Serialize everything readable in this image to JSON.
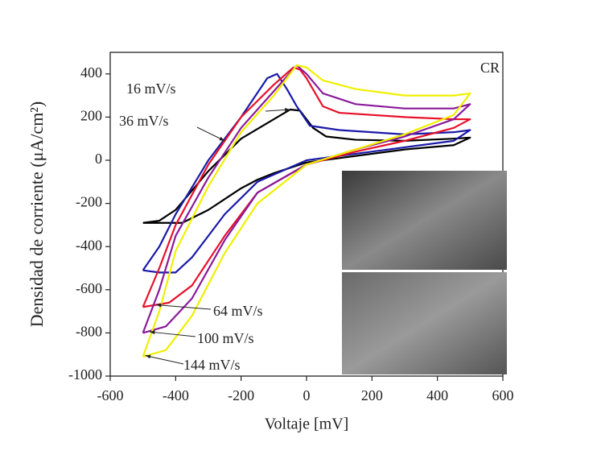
{
  "chart_data": {
    "type": "line",
    "xlabel": "Voltaje [mV]",
    "ylabel": "Densidad de corriente (μA/cm²)",
    "annotation": "CR",
    "xlim": [
      -600,
      600
    ],
    "xticks": [
      -600,
      -400,
      -200,
      0,
      200,
      400,
      600
    ],
    "ylim": [
      -1000,
      500
    ],
    "yticks": [
      -1000,
      -800,
      -600,
      -400,
      -200,
      0,
      200,
      400
    ],
    "series": [
      {
        "name": "16 mV/s",
        "color": "#000000",
        "x": [
          -500,
          -450,
          -400,
          -300,
          -200,
          -100,
          -50,
          -20,
          20,
          60,
          150,
          300,
          450,
          500,
          450,
          300,
          150,
          0,
          -100,
          -150,
          -200,
          -300,
          -380,
          -450,
          -500
        ],
        "values": [
          -290,
          -280,
          -230,
          -50,
          100,
          190,
          235,
          230,
          150,
          110,
          95,
          90,
          100,
          105,
          70,
          50,
          20,
          -10,
          -60,
          -90,
          -130,
          -230,
          -290,
          -290,
          -290
        ]
      },
      {
        "name": "36 mV/s",
        "color": "#1a1aa8",
        "x": [
          -500,
          -450,
          -400,
          -300,
          -200,
          -120,
          -90,
          -60,
          -30,
          10,
          100,
          300,
          450,
          500,
          450,
          300,
          150,
          0,
          -150,
          -250,
          -350,
          -400,
          -450,
          -500
        ],
        "values": [
          -510,
          -400,
          -250,
          0,
          200,
          380,
          400,
          330,
          250,
          160,
          140,
          120,
          130,
          140,
          90,
          60,
          30,
          0,
          -100,
          -250,
          -450,
          -520,
          -520,
          -510
        ]
      },
      {
        "name": "64 mV/s",
        "color": "#e8102a",
        "x": [
          -500,
          -450,
          -400,
          -300,
          -200,
          -100,
          -40,
          -20,
          0,
          50,
          100,
          300,
          450,
          500,
          450,
          300,
          150,
          0,
          -150,
          -250,
          -350,
          -420,
          -500
        ],
        "values": [
          -680,
          -500,
          -300,
          -20,
          200,
          350,
          430,
          420,
          380,
          250,
          220,
          200,
          190,
          190,
          150,
          90,
          40,
          -20,
          -150,
          -350,
          -580,
          -660,
          -680
        ]
      },
      {
        "name": "100 mV/s",
        "color": "#8a1a9a",
        "x": [
          -500,
          -450,
          -400,
          -300,
          -200,
          -100,
          -30,
          0,
          50,
          150,
          300,
          450,
          500,
          450,
          300,
          150,
          0,
          -150,
          -250,
          -350,
          -430,
          -500
        ],
        "values": [
          -800,
          -600,
          -350,
          -80,
          150,
          320,
          440,
          400,
          310,
          260,
          240,
          240,
          260,
          190,
          110,
          50,
          -20,
          -150,
          -370,
          -640,
          -770,
          -800
        ]
      },
      {
        "name": "144 mV/s",
        "color": "#f0f000",
        "x": [
          -500,
          -450,
          -400,
          -300,
          -200,
          -100,
          -30,
          0,
          50,
          150,
          300,
          450,
          500,
          450,
          300,
          150,
          0,
          -150,
          -250,
          -350,
          -430,
          -500
        ],
        "values": [
          -910,
          -700,
          -420,
          -120,
          130,
          300,
          440,
          430,
          370,
          330,
          300,
          300,
          310,
          210,
          120,
          50,
          -20,
          -200,
          -430,
          -720,
          -880,
          -910
        ]
      }
    ]
  }
}
